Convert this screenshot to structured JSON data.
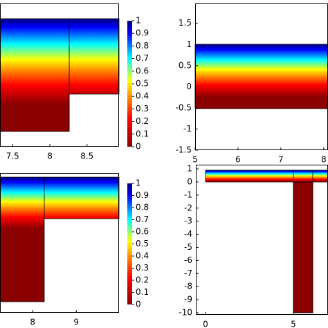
{
  "chart_data": [
    {
      "type": "field",
      "xlim": [
        7.33,
        8.93
      ],
      "xticks": [
        7.5,
        8,
        8.5
      ],
      "colorbar": {
        "lim": [
          0,
          1
        ],
        "ticks": [
          0,
          0.1,
          0.2,
          0.3,
          0.4,
          0.5,
          0.6,
          0.7,
          0.8,
          0.9,
          1
        ]
      }
    },
    {
      "type": "field",
      "xlim": [
        5,
        8.1
      ],
      "xticks": [
        5,
        6,
        7,
        8
      ],
      "ylim": [
        -1.5,
        1.97
      ],
      "yticks": [
        -1.5,
        -1,
        -0.5,
        0,
        0.5,
        1,
        1.5
      ]
    },
    {
      "type": "field",
      "xlim": [
        7.25,
        9.98
      ],
      "xticks": [
        8,
        9
      ],
      "colorbar": {
        "lim": [
          0,
          1
        ],
        "ticks": [
          0,
          0.1,
          0.2,
          0.3,
          0.4,
          0.5,
          0.6,
          0.7,
          0.8,
          0.9,
          1
        ]
      }
    },
    {
      "type": "field",
      "xlim": [
        -0.55,
        6.97
      ],
      "xticks": [
        0,
        5
      ],
      "ylim": [
        -10.16,
        1.32
      ],
      "yticks": [
        -10,
        -9,
        -8,
        -7,
        -6,
        -5,
        -4,
        -3,
        -2,
        -1,
        0,
        1
      ]
    }
  ]
}
